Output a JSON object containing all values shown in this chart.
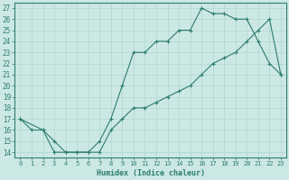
{
  "xlabel": "Humidex (Indice chaleur)",
  "bg_color": "#cce8e4",
  "line_color": "#2d7d6e",
  "grid_color": "#b0d8d0",
  "xlim": [
    -0.5,
    23.5
  ],
  "ylim": [
    13.5,
    27.5
  ],
  "xticks": [
    0,
    1,
    2,
    3,
    4,
    5,
    6,
    7,
    8,
    9,
    10,
    11,
    12,
    13,
    14,
    15,
    16,
    17,
    18,
    19,
    20,
    21,
    22,
    23
  ],
  "yticks": [
    14,
    15,
    16,
    17,
    18,
    19,
    20,
    21,
    22,
    23,
    24,
    25,
    26,
    27
  ],
  "line1_x": [
    0,
    1,
    2,
    3,
    4,
    5,
    6,
    7,
    8,
    9,
    10,
    11,
    12,
    13,
    14,
    15,
    16,
    17,
    18,
    19,
    20,
    21,
    22,
    23
  ],
  "line1_y": [
    17,
    16,
    16,
    15,
    14,
    14,
    14,
    15,
    17,
    20,
    23,
    23,
    24,
    24,
    25,
    25,
    27,
    26.5,
    26.5,
    26,
    26,
    24,
    22,
    21
  ],
  "line2_x": [
    0,
    2,
    3,
    4,
    5,
    6,
    7,
    8,
    9,
    10,
    11,
    12,
    13,
    14,
    15,
    16,
    17,
    18,
    19,
    20,
    21,
    22,
    23
  ],
  "line2_y": [
    17,
    16,
    14,
    14,
    14,
    14,
    14,
    16,
    17,
    18,
    18,
    18.5,
    19,
    19.5,
    20,
    21,
    22,
    22.5,
    23,
    24,
    25,
    26,
    21
  ]
}
